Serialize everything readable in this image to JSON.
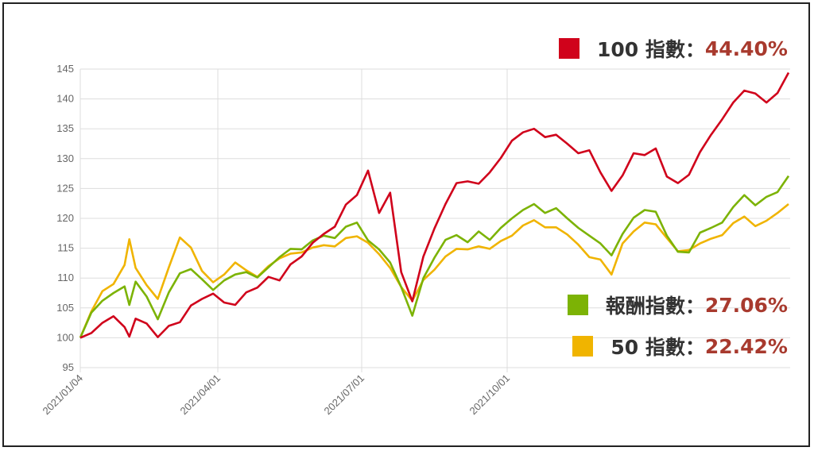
{
  "chart_data": {
    "type": "line",
    "title": "",
    "xlabel": "",
    "ylabel": "",
    "ylim": [
      95,
      145
    ],
    "yticks": [
      95,
      100,
      105,
      110,
      115,
      120,
      125,
      130,
      135,
      140,
      145
    ],
    "x_tick_labels": [
      "2021/01/04",
      "2021/04/01",
      "2021/07/01",
      "2021/10/01"
    ],
    "grid": true,
    "legend_placement": "right",
    "series": [
      {
        "name": "100 指數",
        "return_label": "44.40%",
        "color": "#d0021b",
        "points": [
          [
            "2021-01-04",
            100.0
          ],
          [
            "2021-01-11",
            100.8
          ],
          [
            "2021-01-18",
            102.5
          ],
          [
            "2021-01-25",
            103.6
          ],
          [
            "2021-02-01",
            101.8
          ],
          [
            "2021-02-04",
            100.2
          ],
          [
            "2021-02-08",
            103.2
          ],
          [
            "2021-02-15",
            102.4
          ],
          [
            "2021-02-22",
            100.1
          ],
          [
            "2021-03-01",
            102.0
          ],
          [
            "2021-03-08",
            102.6
          ],
          [
            "2021-03-15",
            105.4
          ],
          [
            "2021-03-22",
            106.5
          ],
          [
            "2021-03-29",
            107.4
          ],
          [
            "2021-04-05",
            105.9
          ],
          [
            "2021-04-12",
            105.5
          ],
          [
            "2021-04-19",
            107.6
          ],
          [
            "2021-04-26",
            108.4
          ],
          [
            "2021-05-03",
            110.2
          ],
          [
            "2021-05-10",
            109.6
          ],
          [
            "2021-05-17",
            112.3
          ],
          [
            "2021-05-24",
            113.6
          ],
          [
            "2021-05-31",
            115.9
          ],
          [
            "2021-06-07",
            117.4
          ],
          [
            "2021-06-14",
            118.6
          ],
          [
            "2021-06-21",
            122.3
          ],
          [
            "2021-06-28",
            123.9
          ],
          [
            "2021-07-05",
            128.0
          ],
          [
            "2021-07-12",
            120.9
          ],
          [
            "2021-07-19",
            124.3
          ],
          [
            "2021-07-26",
            111.0
          ],
          [
            "2021-08-02",
            106.1
          ],
          [
            "2021-08-09",
            113.6
          ],
          [
            "2021-08-16",
            118.3
          ],
          [
            "2021-08-23",
            122.4
          ],
          [
            "2021-08-30",
            125.9
          ],
          [
            "2021-09-06",
            126.2
          ],
          [
            "2021-09-13",
            125.8
          ],
          [
            "2021-09-20",
            127.7
          ],
          [
            "2021-09-27",
            130.1
          ],
          [
            "2021-10-04",
            133.0
          ],
          [
            "2021-10-11",
            134.4
          ],
          [
            "2021-10-18",
            135.0
          ],
          [
            "2021-10-25",
            133.6
          ],
          [
            "2021-11-01",
            134.0
          ],
          [
            "2021-11-08",
            132.5
          ],
          [
            "2021-11-15",
            130.9
          ],
          [
            "2021-11-22",
            131.4
          ],
          [
            "2021-11-29",
            127.7
          ],
          [
            "2021-12-06",
            124.6
          ],
          [
            "2021-12-13",
            127.2
          ],
          [
            "2021-12-20",
            130.9
          ],
          [
            "2021-12-27",
            130.6
          ],
          [
            "2022-01-03",
            131.7
          ],
          [
            "2022-01-10",
            127.0
          ],
          [
            "2022-01-17",
            125.9
          ],
          [
            "2022-01-24",
            127.3
          ],
          [
            "2022-01-31",
            131.1
          ],
          [
            "2022-02-07",
            134.0
          ],
          [
            "2022-02-14",
            136.6
          ],
          [
            "2022-02-21",
            139.4
          ],
          [
            "2022-02-28",
            141.4
          ],
          [
            "2022-03-07",
            140.9
          ],
          [
            "2022-03-14",
            139.4
          ],
          [
            "2022-03-21",
            141.0
          ],
          [
            "2022-03-28",
            144.4
          ]
        ]
      },
      {
        "name": "報酬指數",
        "return_label": "27.06%",
        "color": "#7cb305",
        "points": [
          [
            "2021-01-04",
            100.0
          ],
          [
            "2021-01-11",
            104.2
          ],
          [
            "2021-01-18",
            106.2
          ],
          [
            "2021-01-25",
            107.5
          ],
          [
            "2021-02-01",
            108.6
          ],
          [
            "2021-02-04",
            105.5
          ],
          [
            "2021-02-08",
            109.4
          ],
          [
            "2021-02-15",
            106.9
          ],
          [
            "2021-02-22",
            103.1
          ],
          [
            "2021-03-01",
            107.6
          ],
          [
            "2021-03-08",
            110.8
          ],
          [
            "2021-03-15",
            111.5
          ],
          [
            "2021-03-22",
            109.8
          ],
          [
            "2021-03-29",
            108.0
          ],
          [
            "2021-04-05",
            109.6
          ],
          [
            "2021-04-12",
            110.6
          ],
          [
            "2021-04-19",
            111.0
          ],
          [
            "2021-04-26",
            110.1
          ],
          [
            "2021-05-03",
            111.8
          ],
          [
            "2021-05-10",
            113.5
          ],
          [
            "2021-05-17",
            114.9
          ],
          [
            "2021-05-24",
            114.8
          ],
          [
            "2021-05-31",
            116.3
          ],
          [
            "2021-06-07",
            117.1
          ],
          [
            "2021-06-14",
            116.7
          ],
          [
            "2021-06-21",
            118.6
          ],
          [
            "2021-06-28",
            119.3
          ],
          [
            "2021-07-05",
            116.3
          ],
          [
            "2021-07-12",
            114.8
          ],
          [
            "2021-07-19",
            112.6
          ],
          [
            "2021-07-26",
            108.5
          ],
          [
            "2021-08-02",
            103.7
          ],
          [
            "2021-08-09",
            110.0
          ],
          [
            "2021-08-16",
            113.4
          ],
          [
            "2021-08-23",
            116.4
          ],
          [
            "2021-08-30",
            117.2
          ],
          [
            "2021-09-06",
            116.0
          ],
          [
            "2021-09-13",
            117.8
          ],
          [
            "2021-09-20",
            116.4
          ],
          [
            "2021-09-27",
            118.4
          ],
          [
            "2021-10-04",
            120.0
          ],
          [
            "2021-10-11",
            121.4
          ],
          [
            "2021-10-18",
            122.4
          ],
          [
            "2021-10-25",
            120.9
          ],
          [
            "2021-11-01",
            121.7
          ],
          [
            "2021-11-08",
            120.0
          ],
          [
            "2021-11-15",
            118.4
          ],
          [
            "2021-11-22",
            117.1
          ],
          [
            "2021-11-29",
            115.8
          ],
          [
            "2021-12-06",
            113.8
          ],
          [
            "2021-12-13",
            117.4
          ],
          [
            "2021-12-20",
            120.1
          ],
          [
            "2021-12-27",
            121.4
          ],
          [
            "2022-01-03",
            121.1
          ],
          [
            "2022-01-10",
            117.1
          ],
          [
            "2022-01-17",
            114.4
          ],
          [
            "2022-01-24",
            114.3
          ],
          [
            "2022-01-31",
            117.6
          ],
          [
            "2022-02-07",
            118.4
          ],
          [
            "2022-02-14",
            119.3
          ],
          [
            "2022-02-21",
            121.9
          ],
          [
            "2022-02-28",
            123.9
          ],
          [
            "2022-03-07",
            122.2
          ],
          [
            "2022-03-14",
            123.6
          ],
          [
            "2022-03-21",
            124.4
          ],
          [
            "2022-03-28",
            127.1
          ]
        ]
      },
      {
        "name": "50 指數",
        "return_label": "22.42%",
        "color": "#f0b400",
        "points": [
          [
            "2021-01-04",
            100.0
          ],
          [
            "2021-01-11",
            104.4
          ],
          [
            "2021-01-18",
            107.8
          ],
          [
            "2021-01-25",
            109.0
          ],
          [
            "2021-02-01",
            112.2
          ],
          [
            "2021-02-04",
            116.5
          ],
          [
            "2021-02-08",
            111.7
          ],
          [
            "2021-02-15",
            108.8
          ],
          [
            "2021-02-22",
            106.5
          ],
          [
            "2021-03-01",
            111.8
          ],
          [
            "2021-03-08",
            116.8
          ],
          [
            "2021-03-15",
            115.1
          ],
          [
            "2021-03-22",
            111.2
          ],
          [
            "2021-03-29",
            109.3
          ],
          [
            "2021-04-05",
            110.6
          ],
          [
            "2021-04-12",
            112.6
          ],
          [
            "2021-04-19",
            111.3
          ],
          [
            "2021-04-26",
            110.2
          ],
          [
            "2021-05-03",
            112.0
          ],
          [
            "2021-05-10",
            113.3
          ],
          [
            "2021-05-17",
            114.1
          ],
          [
            "2021-05-24",
            114.3
          ],
          [
            "2021-05-31",
            115.1
          ],
          [
            "2021-06-07",
            115.5
          ],
          [
            "2021-06-14",
            115.3
          ],
          [
            "2021-06-21",
            116.7
          ],
          [
            "2021-06-28",
            117.0
          ],
          [
            "2021-07-05",
            115.9
          ],
          [
            "2021-07-12",
            114.0
          ],
          [
            "2021-07-19",
            111.7
          ],
          [
            "2021-07-26",
            108.5
          ],
          [
            "2021-08-02",
            106.2
          ],
          [
            "2021-08-09",
            109.7
          ],
          [
            "2021-08-16",
            111.4
          ],
          [
            "2021-08-23",
            113.6
          ],
          [
            "2021-08-30",
            114.9
          ],
          [
            "2021-09-06",
            114.8
          ],
          [
            "2021-09-13",
            115.3
          ],
          [
            "2021-09-20",
            114.9
          ],
          [
            "2021-09-27",
            116.2
          ],
          [
            "2021-10-04",
            117.1
          ],
          [
            "2021-10-11",
            118.8
          ],
          [
            "2021-10-18",
            119.7
          ],
          [
            "2021-10-25",
            118.5
          ],
          [
            "2021-11-01",
            118.5
          ],
          [
            "2021-11-08",
            117.3
          ],
          [
            "2021-11-15",
            115.6
          ],
          [
            "2021-11-22",
            113.5
          ],
          [
            "2021-11-29",
            113.1
          ],
          [
            "2021-12-06",
            110.6
          ],
          [
            "2021-12-13",
            115.8
          ],
          [
            "2021-12-20",
            117.8
          ],
          [
            "2021-12-27",
            119.3
          ],
          [
            "2022-01-03",
            119.0
          ],
          [
            "2022-01-10",
            116.7
          ],
          [
            "2022-01-17",
            114.5
          ],
          [
            "2022-01-24",
            114.7
          ],
          [
            "2022-01-31",
            115.8
          ],
          [
            "2022-02-07",
            116.6
          ],
          [
            "2022-02-14",
            117.2
          ],
          [
            "2022-02-21",
            119.2
          ],
          [
            "2022-02-28",
            120.3
          ],
          [
            "2022-03-07",
            118.7
          ],
          [
            "2022-03-14",
            119.6
          ],
          [
            "2022-03-21",
            120.9
          ],
          [
            "2022-03-28",
            122.4
          ]
        ]
      }
    ]
  }
}
